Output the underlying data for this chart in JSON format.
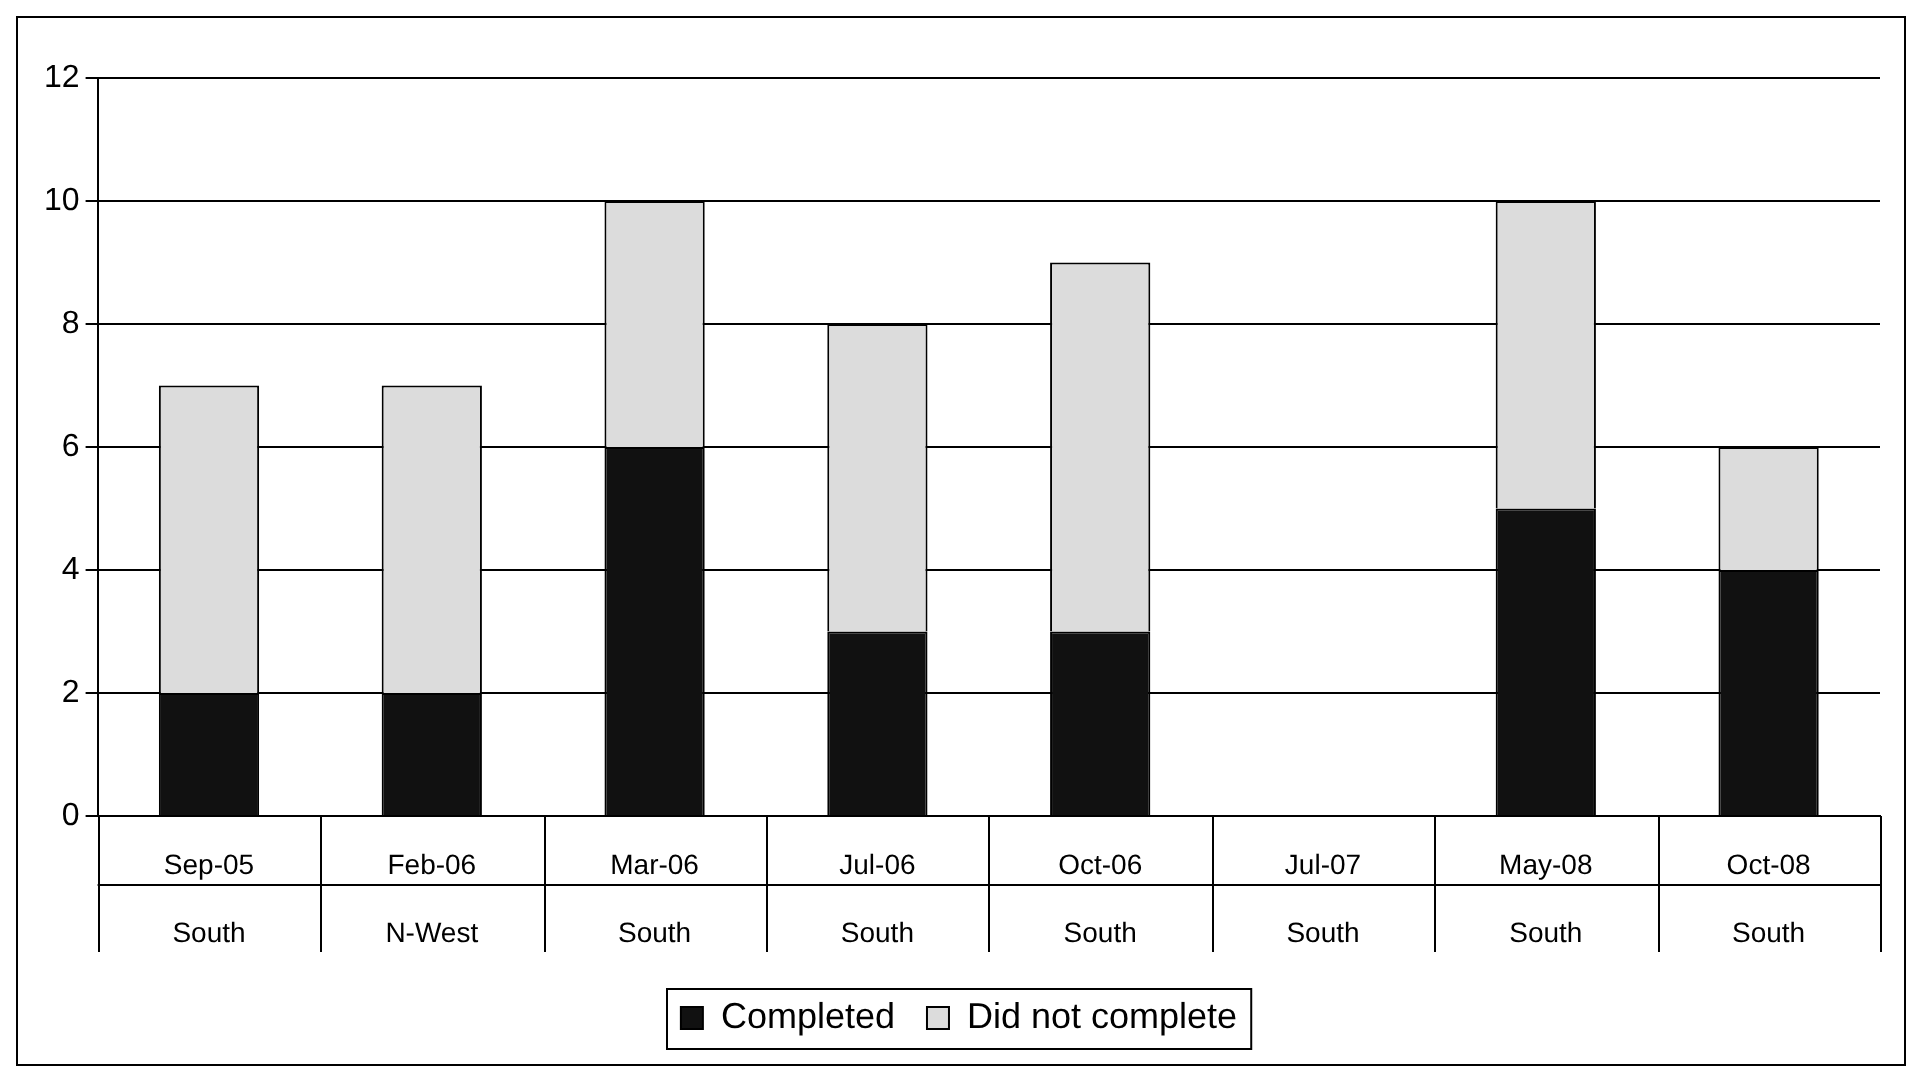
{
  "chart_data": {
    "type": "bar",
    "stacked": true,
    "categories": [
      "Sep-05\nSouth",
      "Feb-06\nN-West",
      "Mar-06\nSouth",
      "Jul-06\nSouth",
      "Oct-06\nSouth",
      "Jul-07\nSouth",
      "May-08\nSouth",
      "Oct-08\nSouth"
    ],
    "series": [
      {
        "name": "Completed",
        "color": "#111111",
        "values": [
          2,
          2,
          6,
          3,
          3,
          0,
          5,
          4
        ]
      },
      {
        "name": "Did not complete",
        "color": "#dcdcdc",
        "values": [
          5,
          5,
          4,
          5,
          6,
          0,
          5,
          2
        ]
      }
    ],
    "ylim": [
      0,
      12
    ],
    "yticks": [
      0,
      2,
      4,
      6,
      8,
      10,
      12
    ],
    "grid": "y",
    "legend": "bottom"
  }
}
